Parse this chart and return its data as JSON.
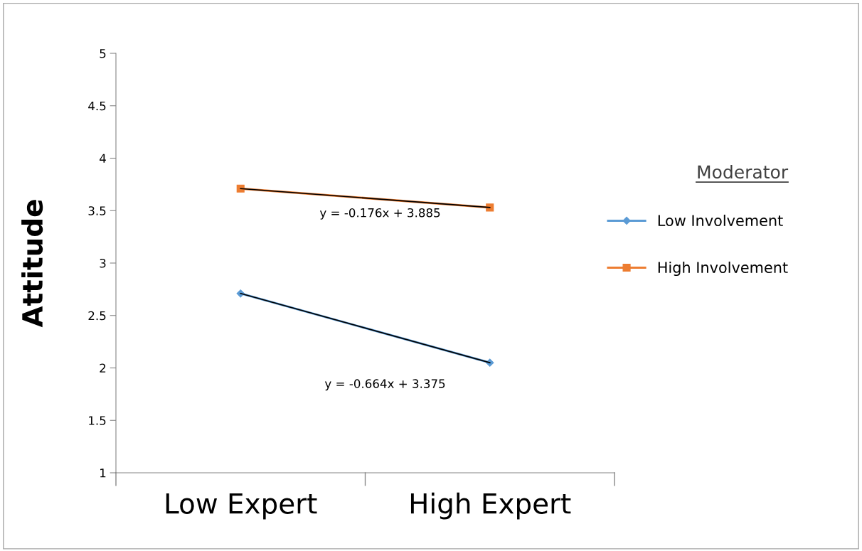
{
  "chart_data": {
    "type": "line",
    "ylabel": "Attitude",
    "legend_title": "Moderator",
    "categories": [
      "Low Expert",
      "High Expert"
    ],
    "series": [
      {
        "name": "Low Involvement",
        "color": "#5b9bd5",
        "values": [
          2.71,
          2.05
        ],
        "marker": "diamond"
      },
      {
        "name": "High Involvement",
        "color": "#ed7d31",
        "values": [
          3.71,
          3.53
        ],
        "marker": "square"
      },
      {
        "type": "line",
        "color": "#000000",
        "values": [
          2.71,
          2.05
        ],
        "marker": "none"
      },
      {
        "type": "line",
        "color": "#000000",
        "values": [
          3.71,
          3.53
        ],
        "marker": "none"
      }
    ],
    "annotations": [
      "y = -0.664x + 3.375",
      "y = -0.176x + 3.885"
    ],
    "ylim": [
      1,
      5
    ],
    "yticks": [
      1,
      1.5,
      2,
      2.5,
      3,
      3.5,
      4,
      4.5,
      5
    ],
    "grid": false,
    "legend": "right"
  }
}
